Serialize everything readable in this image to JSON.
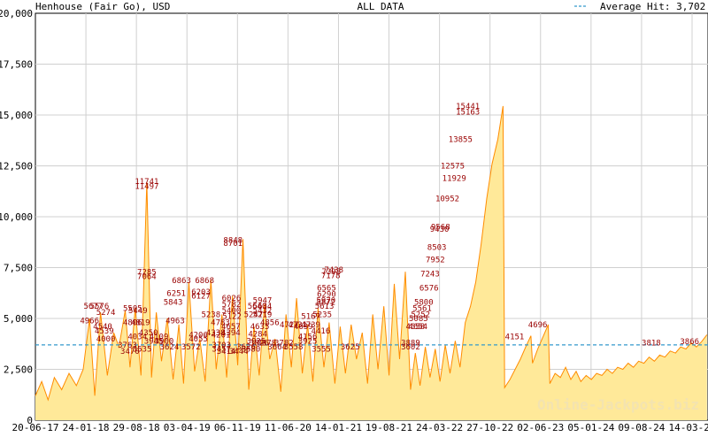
{
  "header": {
    "title_left": "Henhouse (Fair Go), USD",
    "title_center": "ALL DATA",
    "legend_label": "Average Hit: 3,702"
  },
  "watermark": "Online-Jackpots.biz",
  "colors": {
    "fill": "#ffe999",
    "line": "#ff8c00",
    "average": "#3399cc",
    "label": "#990000",
    "grid": "#d0d0d0",
    "watermark": "#f3e3b0"
  },
  "chart_data": {
    "type": "area",
    "title": "ALL DATA",
    "series_label": "Henhouse (Fair Go), USD",
    "ylim": [
      0,
      20000
    ],
    "y_ticks": [
      0,
      2500,
      5000,
      7500,
      10000,
      12500,
      15000,
      17500,
      20000
    ],
    "y_tick_labels": [
      "0",
      "2,500",
      "5,000",
      "7,500",
      "10,000",
      "12,500",
      "15,000",
      "17,500",
      "20,000"
    ],
    "x_ticks": [
      "20-06-17",
      "24-01-18",
      "29-08-18",
      "03-04-19",
      "06-11-19",
      "11-06-20",
      "14-01-21",
      "19-08-21",
      "24-03-22",
      "27-10-22",
      "02-06-23",
      "05-01-24",
      "09-08-24",
      "14-03-25"
    ],
    "average_hit": 3702,
    "grid": true,
    "legend_position": "top-right",
    "points": [
      [
        0,
        1200
      ],
      [
        1.2,
        1900
      ],
      [
        2.4,
        1000
      ],
      [
        3.6,
        2100
      ],
      [
        5,
        1500
      ],
      [
        6.4,
        2300
      ],
      [
        7.8,
        1700
      ],
      [
        9.1,
        2500
      ],
      [
        10.3,
        5000
      ],
      [
        11.3,
        1200
      ],
      [
        12.4,
        5300
      ],
      [
        13.7,
        2200
      ],
      [
        14.9,
        4300
      ],
      [
        15.9,
        3600
      ],
      [
        17.1,
        5400
      ],
      [
        18,
        2600
      ],
      [
        19,
        5500
      ],
      [
        20.1,
        2200
      ],
      [
        21.2,
        11700
      ],
      [
        22.1,
        2100
      ],
      [
        23,
        5300
      ],
      [
        24,
        2900
      ],
      [
        25.1,
        5000
      ],
      [
        26.2,
        2000
      ],
      [
        27.3,
        4700
      ],
      [
        28.2,
        1800
      ],
      [
        29.2,
        6800
      ],
      [
        30.3,
        2400
      ],
      [
        31.3,
        4000
      ],
      [
        32.3,
        1900
      ],
      [
        33.4,
        6900
      ],
      [
        34.4,
        2500
      ],
      [
        35.5,
        5200
      ],
      [
        36.4,
        2100
      ],
      [
        37.5,
        6100
      ],
      [
        38.5,
        2700
      ],
      [
        39.5,
        8900
      ],
      [
        40.6,
        1500
      ],
      [
        41.6,
        4600
      ],
      [
        42.6,
        2200
      ],
      [
        43.6,
        5700
      ],
      [
        44.6,
        3000
      ],
      [
        45.6,
        4000
      ],
      [
        46.7,
        1400
      ],
      [
        47.7,
        5200
      ],
      [
        48.7,
        2600
      ],
      [
        49.7,
        6000
      ],
      [
        50.8,
        2300
      ],
      [
        51.8,
        4700
      ],
      [
        52.8,
        1900
      ],
      [
        53.8,
        5500
      ],
      [
        54.9,
        2600
      ],
      [
        55.9,
        4800
      ],
      [
        57,
        1800
      ],
      [
        58,
        4600
      ],
      [
        59,
        2300
      ],
      [
        60.1,
        4700
      ],
      [
        61.1,
        3000
      ],
      [
        62.2,
        4300
      ],
      [
        63.2,
        1800
      ],
      [
        64.2,
        5200
      ],
      [
        65.2,
        2500
      ],
      [
        66.3,
        5600
      ],
      [
        67.3,
        2200
      ],
      [
        68.3,
        6700
      ],
      [
        69.3,
        3000
      ],
      [
        70.4,
        7300
      ],
      [
        71.4,
        1500
      ],
      [
        72.3,
        3300
      ],
      [
        73.2,
        1700
      ],
      [
        74.2,
        3600
      ],
      [
        75.1,
        2100
      ],
      [
        76.1,
        3500
      ],
      [
        77,
        1900
      ],
      [
        78,
        3700
      ],
      [
        78.9,
        2300
      ],
      [
        79.9,
        3900
      ],
      [
        80.8,
        2600
      ],
      [
        81.8,
        4800
      ],
      [
        82.8,
        5600
      ],
      [
        83.8,
        6800
      ],
      [
        84.8,
        8600
      ],
      [
        85.9,
        10900
      ],
      [
        86.9,
        12600
      ],
      [
        88,
        13800
      ],
      [
        89,
        15441
      ],
      [
        89.3,
        1600
      ],
      [
        90.3,
        2000
      ],
      [
        91.3,
        2500
      ],
      [
        92.3,
        3000
      ],
      [
        93.3,
        3600
      ],
      [
        94.3,
        4150
      ],
      [
        94.6,
        2800
      ],
      [
        95.6,
        3500
      ],
      [
        96.6,
        4100
      ],
      [
        97.6,
        4696
      ],
      [
        97.9,
        1800
      ],
      [
        98.9,
        2300
      ],
      [
        99.9,
        2100
      ],
      [
        100.9,
        2600
      ],
      [
        101.9,
        2000
      ],
      [
        102.9,
        2400
      ],
      [
        103.8,
        1900
      ],
      [
        104.8,
        2200
      ],
      [
        105.8,
        2000
      ],
      [
        106.8,
        2300
      ],
      [
        107.8,
        2200
      ],
      [
        108.8,
        2500
      ],
      [
        109.8,
        2300
      ],
      [
        110.8,
        2600
      ],
      [
        111.8,
        2500
      ],
      [
        112.8,
        2800
      ],
      [
        113.8,
        2600
      ],
      [
        114.8,
        2900
      ],
      [
        115.8,
        2800
      ],
      [
        116.8,
        3100
      ],
      [
        117.8,
        2900
      ],
      [
        118.8,
        3200
      ],
      [
        119.8,
        3100
      ],
      [
        120.8,
        3400
      ],
      [
        121.8,
        3300
      ],
      [
        122.8,
        3600
      ],
      [
        123.8,
        3500
      ],
      [
        124.8,
        3800
      ],
      [
        125.8,
        3600
      ],
      [
        126.8,
        3866
      ],
      [
        127.8,
        4200
      ]
    ],
    "x_max": 128,
    "data_labels": [
      {
        "x": 10.3,
        "y": 4900,
        "text": "4966"
      },
      {
        "x": 11,
        "y": 5600,
        "text": "5677"
      },
      {
        "x": 12.2,
        "y": 5600,
        "text": "5576"
      },
      {
        "x": 13.4,
        "y": 5300,
        "text": "5274"
      },
      {
        "x": 12.8,
        "y": 4600,
        "text": "4540"
      },
      {
        "x": 13.1,
        "y": 4400,
        "text": "4539"
      },
      {
        "x": 13.4,
        "y": 4000,
        "text": "4000"
      },
      {
        "x": 18.5,
        "y": 5500,
        "text": "5505"
      },
      {
        "x": 19.5,
        "y": 5400,
        "text": "5449"
      },
      {
        "x": 18.5,
        "y": 4800,
        "text": "4806"
      },
      {
        "x": 20,
        "y": 4800,
        "text": "4819"
      },
      {
        "x": 21.2,
        "y": 11741,
        "text": "11741"
      },
      {
        "x": 21.2,
        "y": 11497,
        "text": "11497"
      },
      {
        "x": 21.2,
        "y": 7285,
        "text": "7285"
      },
      {
        "x": 21.2,
        "y": 7064,
        "text": "7064"
      },
      {
        "x": 17.5,
        "y": 3700,
        "text": "3763"
      },
      {
        "x": 18,
        "y": 3400,
        "text": "3470"
      },
      {
        "x": 19.4,
        "y": 4100,
        "text": "4034"
      },
      {
        "x": 20.3,
        "y": 3500,
        "text": "3535"
      },
      {
        "x": 21.5,
        "y": 4300,
        "text": "4350"
      },
      {
        "x": 22.5,
        "y": 3900,
        "text": "3945"
      },
      {
        "x": 23.5,
        "y": 4100,
        "text": "4109"
      },
      {
        "x": 24.5,
        "y": 3900,
        "text": "3900"
      },
      {
        "x": 25.5,
        "y": 3600,
        "text": "3624"
      },
      {
        "x": 26.6,
        "y": 4900,
        "text": "4963"
      },
      {
        "x": 26.2,
        "y": 5800,
        "text": "5843"
      },
      {
        "x": 26.8,
        "y": 6250,
        "text": "6251"
      },
      {
        "x": 27.8,
        "y": 6860,
        "text": "6863"
      },
      {
        "x": 29.6,
        "y": 3600,
        "text": "3572"
      },
      {
        "x": 31,
        "y": 4200,
        "text": "4206"
      },
      {
        "x": 31,
        "y": 4000,
        "text": "4055"
      },
      {
        "x": 31.5,
        "y": 6100,
        "text": "6127"
      },
      {
        "x": 31.5,
        "y": 6300,
        "text": "6203"
      },
      {
        "x": 32.2,
        "y": 6860,
        "text": "6868"
      },
      {
        "x": 33.4,
        "y": 5200,
        "text": "5238"
      },
      {
        "x": 34.3,
        "y": 4300,
        "text": "4338"
      },
      {
        "x": 35.2,
        "y": 4800,
        "text": "4783"
      },
      {
        "x": 35.4,
        "y": 3700,
        "text": "3703"
      },
      {
        "x": 35.4,
        "y": 3500,
        "text": "3457"
      },
      {
        "x": 35.3,
        "y": 4200,
        "text": "4201"
      },
      {
        "x": 36.3,
        "y": 3400,
        "text": "3414"
      },
      {
        "x": 37.2,
        "y": 4300,
        "text": "4394"
      },
      {
        "x": 37.2,
        "y": 4600,
        "text": "4657"
      },
      {
        "x": 37.4,
        "y": 5100,
        "text": "5122"
      },
      {
        "x": 37.3,
        "y": 5400,
        "text": "5400"
      },
      {
        "x": 37.3,
        "y": 5700,
        "text": "5782"
      },
      {
        "x": 37.3,
        "y": 6000,
        "text": "6026"
      },
      {
        "x": 37.6,
        "y": 8840,
        "text": "8848"
      },
      {
        "x": 37.6,
        "y": 8700,
        "text": "8701"
      },
      {
        "x": 38.7,
        "y": 3400,
        "text": "3444"
      },
      {
        "x": 40.1,
        "y": 3600,
        "text": "3626"
      },
      {
        "x": 41,
        "y": 3500,
        "text": "3580"
      },
      {
        "x": 41.5,
        "y": 5200,
        "text": "5247"
      },
      {
        "x": 42.2,
        "y": 5600,
        "text": "5640"
      },
      {
        "x": 43.2,
        "y": 5900,
        "text": "5947"
      },
      {
        "x": 43.2,
        "y": 5600,
        "text": "5634"
      },
      {
        "x": 43.2,
        "y": 5400,
        "text": "5432"
      },
      {
        "x": 43.2,
        "y": 5200,
        "text": "5219"
      },
      {
        "x": 42.7,
        "y": 4600,
        "text": "4635"
      },
      {
        "x": 42.3,
        "y": 4250,
        "text": "4284"
      },
      {
        "x": 42,
        "y": 3900,
        "text": "3925"
      },
      {
        "x": 42.6,
        "y": 3800,
        "text": "3826"
      },
      {
        "x": 44,
        "y": 3800,
        "text": "3878"
      },
      {
        "x": 44.6,
        "y": 4800,
        "text": "4856"
      },
      {
        "x": 46,
        "y": 3600,
        "text": "3664"
      },
      {
        "x": 47.3,
        "y": 3800,
        "text": "3782"
      },
      {
        "x": 48.3,
        "y": 4700,
        "text": "4727"
      },
      {
        "x": 49.1,
        "y": 3600,
        "text": "3558"
      },
      {
        "x": 49.9,
        "y": 4700,
        "text": "4731"
      },
      {
        "x": 51,
        "y": 4600,
        "text": "4639"
      },
      {
        "x": 51.8,
        "y": 4100,
        "text": "4156"
      },
      {
        "x": 51.8,
        "y": 3900,
        "text": "3925"
      },
      {
        "x": 52.4,
        "y": 5100,
        "text": "5167"
      },
      {
        "x": 52.4,
        "y": 4700,
        "text": "4739"
      },
      {
        "x": 54.3,
        "y": 4400,
        "text": "4416"
      },
      {
        "x": 54.4,
        "y": 3500,
        "text": "3555"
      },
      {
        "x": 54.6,
        "y": 5200,
        "text": "5235"
      },
      {
        "x": 55,
        "y": 5600,
        "text": "5613"
      },
      {
        "x": 55.3,
        "y": 5800,
        "text": "5872"
      },
      {
        "x": 55.3,
        "y": 5900,
        "text": "5970"
      },
      {
        "x": 55.4,
        "y": 6200,
        "text": "6290"
      },
      {
        "x": 55.4,
        "y": 6500,
        "text": "6565"
      },
      {
        "x": 56.2,
        "y": 7100,
        "text": "7178"
      },
      {
        "x": 56.3,
        "y": 7300,
        "text": "7398"
      },
      {
        "x": 56.8,
        "y": 7400,
        "text": "7438"
      },
      {
        "x": 59.9,
        "y": 3600,
        "text": "3625"
      },
      {
        "x": 71.4,
        "y": 3600,
        "text": "3602"
      },
      {
        "x": 71.4,
        "y": 3800,
        "text": "3889"
      },
      {
        "x": 72.3,
        "y": 4600,
        "text": "4658"
      },
      {
        "x": 72.8,
        "y": 4600,
        "text": "4654"
      },
      {
        "x": 72.9,
        "y": 5000,
        "text": "5085"
      },
      {
        "x": 73.3,
        "y": 5200,
        "text": "5252"
      },
      {
        "x": 73.6,
        "y": 5500,
        "text": "5561"
      },
      {
        "x": 73.9,
        "y": 5800,
        "text": "5800"
      },
      {
        "x": 74.9,
        "y": 6500,
        "text": "6576"
      },
      {
        "x": 75.1,
        "y": 7200,
        "text": "7243"
      },
      {
        "x": 76.1,
        "y": 7900,
        "text": "7952"
      },
      {
        "x": 76.4,
        "y": 8500,
        "text": "8503"
      },
      {
        "x": 76.9,
        "y": 9400,
        "text": "9430"
      },
      {
        "x": 77.1,
        "y": 9500,
        "text": "9568"
      },
      {
        "x": 78.4,
        "y": 10900,
        "text": "10952"
      },
      {
        "x": 79.7,
        "y": 11900,
        "text": "11929"
      },
      {
        "x": 79.4,
        "y": 12500,
        "text": "12575"
      },
      {
        "x": 80.9,
        "y": 13800,
        "text": "13855"
      },
      {
        "x": 82.3,
        "y": 15441,
        "text": "15441"
      },
      {
        "x": 82.3,
        "y": 15163,
        "text": "15163"
      },
      {
        "x": 91.2,
        "y": 4100,
        "text": "4151"
      },
      {
        "x": 95.6,
        "y": 4696,
        "text": "4696"
      },
      {
        "x": 117.2,
        "y": 3800,
        "text": "3818"
      },
      {
        "x": 124.5,
        "y": 3866,
        "text": "3866"
      }
    ]
  }
}
